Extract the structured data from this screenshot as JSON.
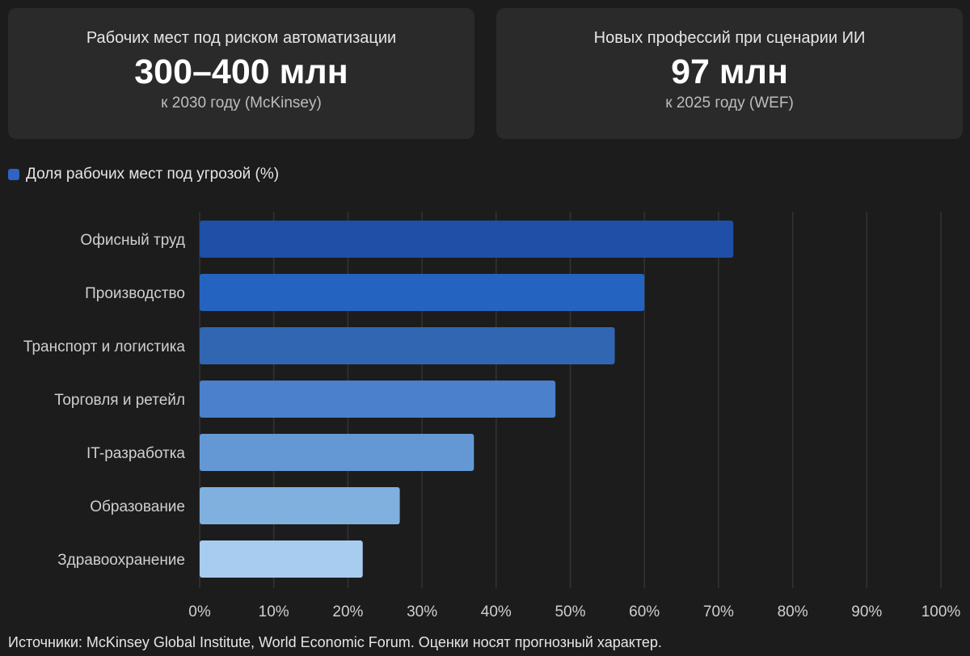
{
  "stats": [
    {
      "label": "Рабочих мест под риском автоматизации",
      "value": "300–400 млн",
      "sub": "к 2030 году (McKinsey)"
    },
    {
      "label": "Новых профессий при сценарии ИИ",
      "value": "97 млн",
      "sub": "к 2025 году (WEF)"
    }
  ],
  "chart_data": {
    "type": "bar",
    "orientation": "horizontal",
    "categories": [
      "Офисный труд",
      "Производство",
      "Транспорт и логистика",
      "Торговля и ретейл",
      "IT-разработка",
      "Образование",
      "Здравоохранение"
    ],
    "series": [
      {
        "name": "Доля рабочих мест под угрозой (%)",
        "values": [
          72,
          60,
          56,
          48,
          37,
          27,
          22
        ]
      }
    ],
    "bar_colors": [
      "#1f4fa6",
      "#2563c0",
      "#3167b2",
      "#4b80cc",
      "#6498d4",
      "#7fb0de",
      "#a8ccef"
    ],
    "xlim": [
      0,
      100
    ],
    "xticks": [
      "0%",
      "10%",
      "20%",
      "30%",
      "40%",
      "50%",
      "60%",
      "70%",
      "80%",
      "90%",
      "100%"
    ],
    "grid": true,
    "legend_position": "top-left"
  },
  "colors": {
    "legend_swatch": "#2f63c4",
    "grid": "#333333"
  },
  "footer": {
    "source": "Источники: McKinsey Global Institute, World Economic Forum. Оценки носят прогнозный характер."
  }
}
